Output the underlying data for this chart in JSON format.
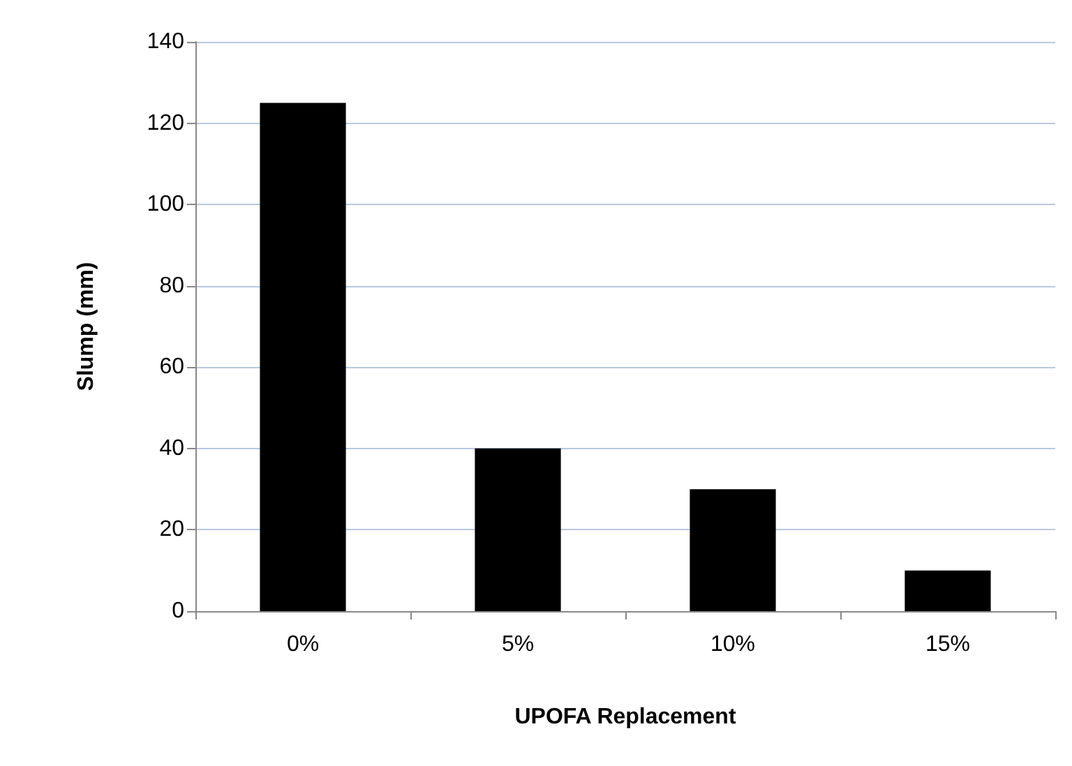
{
  "chart_data": {
    "type": "bar",
    "xlabel": "UPOFA Replacement",
    "ylabel": "Slump (mm)",
    "categories": [
      "0%",
      "5%",
      "10%",
      "15%"
    ],
    "series": [
      {
        "color": "#000000",
        "values": [
          125,
          40,
          30,
          10
        ]
      }
    ],
    "ylim": [
      0,
      140
    ],
    "yticks": [
      0,
      20,
      40,
      60,
      80,
      100,
      120,
      140
    ],
    "grid": "y"
  }
}
